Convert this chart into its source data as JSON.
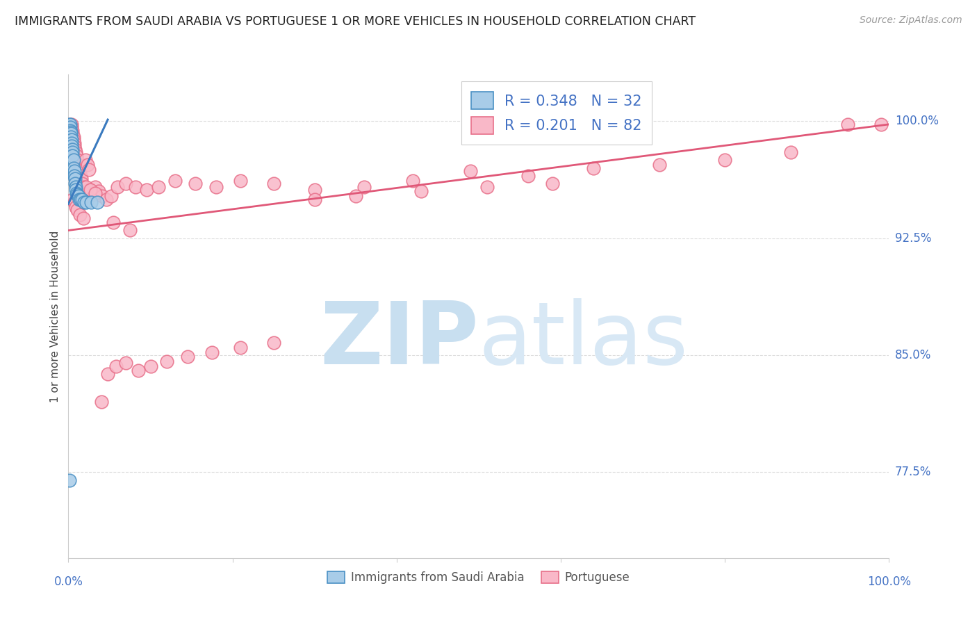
{
  "title": "IMMIGRANTS FROM SAUDI ARABIA VS PORTUGUESE 1 OR MORE VEHICLES IN HOUSEHOLD CORRELATION CHART",
  "source": "Source: ZipAtlas.com",
  "ylabel": "1 or more Vehicles in Household",
  "R1": 0.348,
  "N1": 32,
  "R2": 0.201,
  "N2": 82,
  "color_blue_fill": "#a8cce8",
  "color_blue_edge": "#4a90c4",
  "color_blue_line": "#3a7abf",
  "color_pink_fill": "#f9b8c8",
  "color_pink_edge": "#e8708a",
  "color_pink_line": "#e05878",
  "watermark_zip": "ZIP",
  "watermark_atlas": "atlas",
  "legend1_label": "Immigrants from Saudi Arabia",
  "legend2_label": "Portuguese",
  "ytick_vals": [
    0.775,
    0.85,
    0.925,
    1.0
  ],
  "ytick_labels": [
    "77.5%",
    "85.0%",
    "92.5%",
    "100.0%"
  ],
  "xmin": 0.0,
  "xmax": 1.0,
  "ymin": 0.72,
  "ymax": 1.03,
  "blue_scatter_x": [
    0.001,
    0.001,
    0.002,
    0.002,
    0.002,
    0.003,
    0.003,
    0.003,
    0.004,
    0.004,
    0.004,
    0.005,
    0.005,
    0.005,
    0.006,
    0.006,
    0.007,
    0.007,
    0.008,
    0.008,
    0.009,
    0.009,
    0.01,
    0.011,
    0.012,
    0.013,
    0.015,
    0.017,
    0.019,
    0.022,
    0.028,
    0.035
  ],
  "blue_scatter_y": [
    0.77,
    0.998,
    0.998,
    0.996,
    0.994,
    0.993,
    0.992,
    0.99,
    0.988,
    0.986,
    0.984,
    0.982,
    0.98,
    0.978,
    0.975,
    0.97,
    0.968,
    0.965,
    0.963,
    0.96,
    0.958,
    0.956,
    0.954,
    0.953,
    0.952,
    0.95,
    0.95,
    0.95,
    0.948,
    0.948,
    0.948,
    0.948
  ],
  "pink_scatter_x": [
    0.001,
    0.002,
    0.002,
    0.003,
    0.003,
    0.004,
    0.004,
    0.005,
    0.005,
    0.006,
    0.006,
    0.007,
    0.007,
    0.008,
    0.009,
    0.01,
    0.011,
    0.012,
    0.013,
    0.014,
    0.015,
    0.016,
    0.017,
    0.019,
    0.021,
    0.023,
    0.025,
    0.028,
    0.03,
    0.033,
    0.037,
    0.041,
    0.046,
    0.052,
    0.06,
    0.07,
    0.082,
    0.095,
    0.11,
    0.13,
    0.155,
    0.18,
    0.21,
    0.25,
    0.3,
    0.36,
    0.42,
    0.49,
    0.56,
    0.64,
    0.72,
    0.8,
    0.88,
    0.95,
    0.005,
    0.007,
    0.009,
    0.011,
    0.014,
    0.018,
    0.022,
    0.027,
    0.033,
    0.04,
    0.048,
    0.058,
    0.07,
    0.085,
    0.1,
    0.12,
    0.145,
    0.175,
    0.21,
    0.25,
    0.3,
    0.055,
    0.075,
    0.35,
    0.43,
    0.51,
    0.59,
    0.99
  ],
  "pink_scatter_y": [
    0.998,
    0.997,
    0.995,
    0.994,
    0.992,
    0.998,
    0.996,
    0.994,
    0.992,
    0.99,
    0.988,
    0.986,
    0.984,
    0.982,
    0.98,
    0.978,
    0.975,
    0.972,
    0.97,
    0.968,
    0.965,
    0.963,
    0.96,
    0.958,
    0.975,
    0.972,
    0.969,
    0.955,
    0.953,
    0.958,
    0.955,
    0.952,
    0.95,
    0.952,
    0.958,
    0.96,
    0.958,
    0.956,
    0.958,
    0.962,
    0.96,
    0.958,
    0.962,
    0.96,
    0.956,
    0.958,
    0.962,
    0.968,
    0.965,
    0.97,
    0.972,
    0.975,
    0.98,
    0.998,
    0.95,
    0.948,
    0.945,
    0.943,
    0.94,
    0.938,
    0.958,
    0.956,
    0.954,
    0.82,
    0.838,
    0.843,
    0.845,
    0.84,
    0.843,
    0.846,
    0.849,
    0.852,
    0.855,
    0.858,
    0.95,
    0.935,
    0.93,
    0.952,
    0.955,
    0.958,
    0.96,
    0.998
  ],
  "blue_line_x": [
    0.0,
    0.048
  ],
  "blue_line_y": [
    0.947,
    1.001
  ],
  "pink_line_x": [
    0.0,
    1.0
  ],
  "pink_line_y": [
    0.93,
    0.998
  ]
}
